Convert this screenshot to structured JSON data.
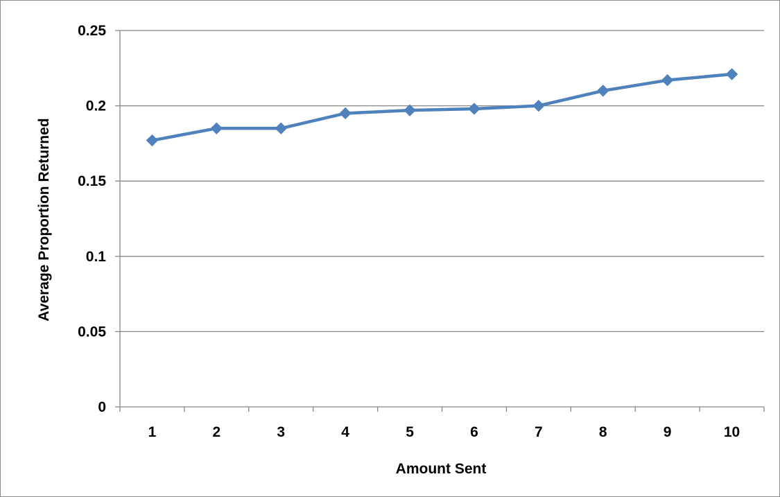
{
  "chart_data": {
    "type": "line",
    "title": "",
    "xlabel": "Amount Sent",
    "ylabel": "Average Proportion Returned",
    "categories": [
      "1",
      "2",
      "3",
      "4",
      "5",
      "6",
      "7",
      "8",
      "9",
      "10"
    ],
    "series": [
      {
        "values": [
          0.177,
          0.185,
          0.185,
          0.195,
          0.197,
          0.198,
          0.2,
          0.21,
          0.217,
          0.221
        ],
        "color": "#4f81bd",
        "marker": "diamond"
      }
    ],
    "ylim": [
      0,
      0.25
    ],
    "yticks": [
      0,
      0.05,
      0.1,
      0.15,
      0.2,
      0.25
    ],
    "ytick_labels": [
      "0",
      "0.05",
      "0.1",
      "0.15",
      "0.2",
      "0.25"
    ],
    "grid": true,
    "legend": "none"
  }
}
